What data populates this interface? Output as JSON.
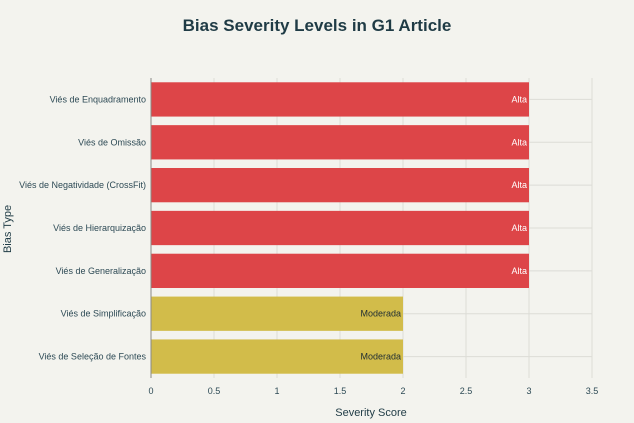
{
  "chart_data": {
    "type": "bar",
    "orientation": "horizontal",
    "title": "Bias Severity Levels in G1 Article",
    "xlabel": "Severity Score",
    "ylabel": "Bias Type",
    "xlim": [
      0,
      3.5
    ],
    "xticks": [
      "0",
      "0.5",
      "1",
      "1.5",
      "2",
      "2.5",
      "3",
      "3.5"
    ],
    "grid": true,
    "categories": [
      "Viés de Enquadramento",
      "Viés de Omissão",
      "Viés de Negatividade (CrossFit)",
      "Viés de Hierarquização",
      "Viés de Generalização",
      "Viés de Simplificação",
      "Viés de Seleção de Fontes"
    ],
    "values": [
      3,
      3,
      3,
      3,
      3,
      2,
      2
    ],
    "data_labels": [
      "Alta",
      "Alta",
      "Alta",
      "Alta",
      "Alta",
      "Moderada",
      "Moderada"
    ],
    "colors": {
      "Alta": "#dd4548",
      "Moderada": "#d2bc4a",
      "alta_label": "#ffffff",
      "moderada_label": "#1f2d33"
    }
  }
}
